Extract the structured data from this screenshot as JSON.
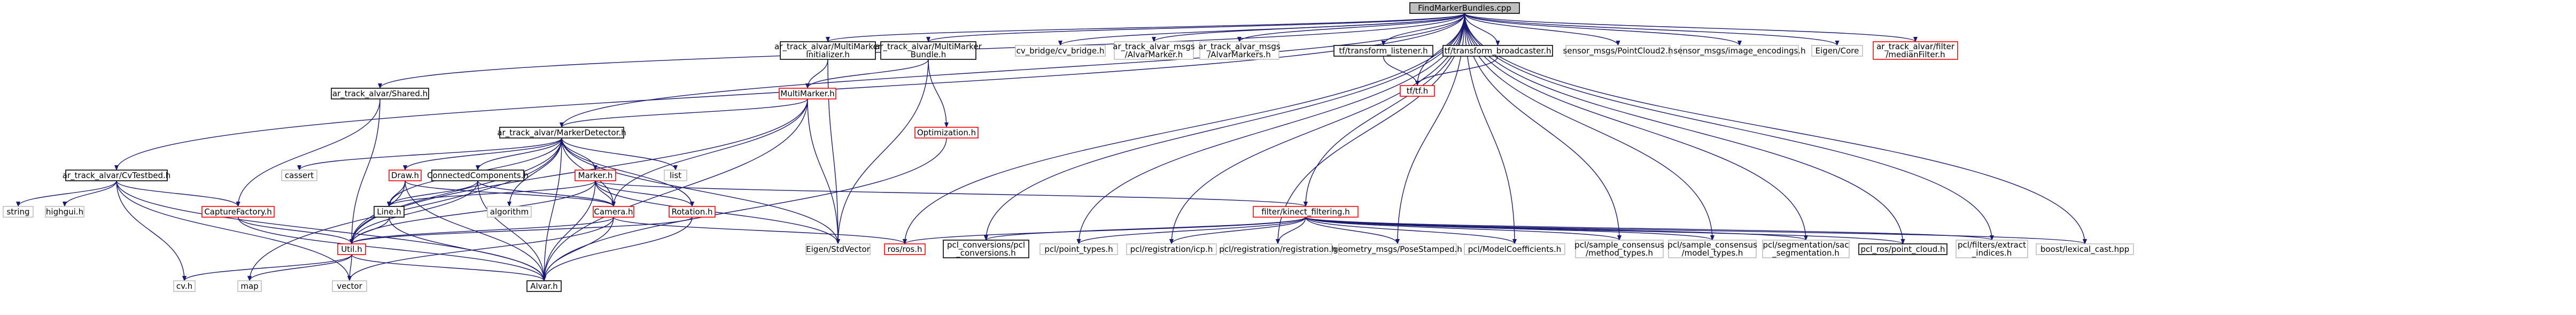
{
  "diagram": {
    "nodes": [
      {
        "id": "root",
        "lines": [
          "FindMarkerBundles.cpp"
        ],
        "style": "root"
      },
      {
        "id": "multimarker_init",
        "lines": [
          "ar_track_alvar/MultiMarker",
          "Initializer.h"
        ],
        "style": "black"
      },
      {
        "id": "multimarker_bundle",
        "lines": [
          "ar_track_alvar/MultiMarker",
          "Bundle.h"
        ],
        "style": "black"
      },
      {
        "id": "cv_bridge",
        "lines": [
          "cv_bridge/cv_bridge.h"
        ],
        "style": "grey"
      },
      {
        "id": "alvar_marker",
        "lines": [
          "ar_track_alvar_msgs",
          "/AlvarMarker.h"
        ],
        "style": "grey"
      },
      {
        "id": "alvar_markers",
        "lines": [
          "ar_track_alvar_msgs",
          "/AlvarMarkers.h"
        ],
        "style": "grey"
      },
      {
        "id": "tf_listener",
        "lines": [
          "tf/transform_listener.h"
        ],
        "style": "black"
      },
      {
        "id": "tf_broadcaster",
        "lines": [
          "tf/transform_broadcaster.h"
        ],
        "style": "black"
      },
      {
        "id": "pointcloud2",
        "lines": [
          "sensor_msgs/PointCloud2.h"
        ],
        "style": "grey"
      },
      {
        "id": "image_encodings",
        "lines": [
          "sensor_msgs/image_encodings.h"
        ],
        "style": "grey"
      },
      {
        "id": "eigen_core",
        "lines": [
          "Eigen/Core"
        ],
        "style": "grey"
      },
      {
        "id": "median_filter",
        "lines": [
          "ar_track_alvar/filter",
          "/medianFilter.h"
        ],
        "style": "red"
      },
      {
        "id": "tf_h",
        "lines": [
          "tf/tf.h"
        ],
        "style": "red"
      },
      {
        "id": "shared",
        "lines": [
          "ar_track_alvar/Shared.h"
        ],
        "style": "black"
      },
      {
        "id": "multimarker",
        "lines": [
          "MultiMarker.h"
        ],
        "style": "red"
      },
      {
        "id": "optimization",
        "lines": [
          "Optimization.h"
        ],
        "style": "red"
      },
      {
        "id": "marker_detector",
        "lines": [
          "ar_track_alvar/MarkerDetector.h"
        ],
        "style": "black"
      },
      {
        "id": "cvtestbed",
        "lines": [
          "ar_track_alvar/CvTestbed.h"
        ],
        "style": "black"
      },
      {
        "id": "capturefactory",
        "lines": [
          "CaptureFactory.h"
        ],
        "style": "red"
      },
      {
        "id": "string",
        "lines": [
          "string"
        ],
        "style": "grey"
      },
      {
        "id": "highgui",
        "lines": [
          "highgui.h"
        ],
        "style": "grey"
      },
      {
        "id": "cassert",
        "lines": [
          "cassert"
        ],
        "style": "grey"
      },
      {
        "id": "draw",
        "lines": [
          "Draw.h"
        ],
        "style": "red"
      },
      {
        "id": "connected",
        "lines": [
          "ConnectedComponents.h"
        ],
        "style": "black"
      },
      {
        "id": "marker_h",
        "lines": [
          "Marker.h"
        ],
        "style": "red"
      },
      {
        "id": "list",
        "lines": [
          "list"
        ],
        "style": "grey"
      },
      {
        "id": "line",
        "lines": [
          "Line.h"
        ],
        "style": "black"
      },
      {
        "id": "algorithm",
        "lines": [
          "algorithm"
        ],
        "style": "grey"
      },
      {
        "id": "camera",
        "lines": [
          "Camera.h"
        ],
        "style": "red"
      },
      {
        "id": "rotation",
        "lines": [
          "Rotation.h"
        ],
        "style": "red"
      },
      {
        "id": "kinect",
        "lines": [
          "filter/kinect_filtering.h"
        ],
        "style": "red"
      },
      {
        "id": "stdvector",
        "lines": [
          "Eigen/StdVector"
        ],
        "style": "grey"
      },
      {
        "id": "util",
        "lines": [
          "Util.h"
        ],
        "style": "red"
      },
      {
        "id": "rosinit",
        "lines": [
          "ros/ros.h"
        ],
        "style": "red"
      },
      {
        "id": "pcl_conversions",
        "lines": [
          "pcl_conversions/pcl",
          "_conversions.h"
        ],
        "style": "black"
      },
      {
        "id": "pcl_point_types",
        "lines": [
          "pcl/point_types.h"
        ],
        "style": "grey"
      },
      {
        "id": "pcl_icp",
        "lines": [
          "pcl/registration/icp.h"
        ],
        "style": "grey"
      },
      {
        "id": "pcl_registration",
        "lines": [
          "pcl/registration/registration.h"
        ],
        "style": "grey"
      },
      {
        "id": "pose_stamped",
        "lines": [
          "geometry_msgs/PoseStamped.h"
        ],
        "style": "grey"
      },
      {
        "id": "model_coeff",
        "lines": [
          "pcl/ModelCoefficients.h"
        ],
        "style": "grey"
      },
      {
        "id": "sac_method",
        "lines": [
          "pcl/sample_consensus",
          "/method_types.h"
        ],
        "style": "grey"
      },
      {
        "id": "sac_model",
        "lines": [
          "pcl/sample_consensus",
          "/model_types.h"
        ],
        "style": "grey"
      },
      {
        "id": "sac_seg",
        "lines": [
          "pcl/segmentation/sac",
          "_segmentation.h"
        ],
        "style": "grey"
      },
      {
        "id": "ros_point_cloud",
        "lines": [
          "pcl_ros/point_cloud.h"
        ],
        "style": "black"
      },
      {
        "id": "extract_indices",
        "lines": [
          "pcl/filters/extract",
          "_indices.h"
        ],
        "style": "grey"
      },
      {
        "id": "lexical_cast",
        "lines": [
          "boost/lexical_cast.hpp"
        ],
        "style": "grey"
      },
      {
        "id": "cvh",
        "lines": [
          "cv.h"
        ],
        "style": "grey"
      },
      {
        "id": "map",
        "lines": [
          "map"
        ],
        "style": "grey"
      },
      {
        "id": "vector",
        "lines": [
          "vector"
        ],
        "style": "grey"
      },
      {
        "id": "alvar",
        "lines": [
          "Alvar.h"
        ],
        "style": "black"
      }
    ]
  }
}
